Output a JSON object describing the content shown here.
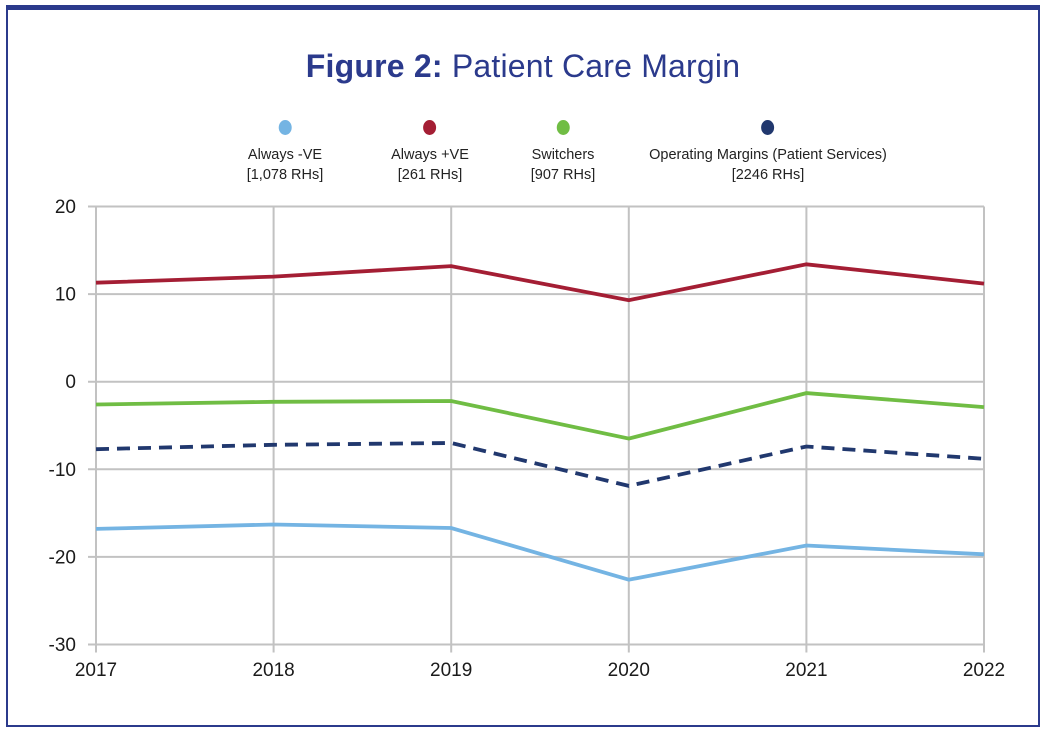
{
  "figure": {
    "title_bold": "Figure 2:",
    "title_rest": " Patient Care Margin",
    "title_color": "#2B3A8C",
    "border_color": "#2B3A8C"
  },
  "chart_data": {
    "type": "line",
    "title": "Figure 2: Patient Care Margin",
    "x": [
      "2017",
      "2018",
      "2019",
      "2020",
      "2021",
      "2022"
    ],
    "series": [
      {
        "name": "Always -VE",
        "count_label": "[1,078 RHs]",
        "color": "#74B4E3",
        "dash": false,
        "values": [
          -16.8,
          -16.3,
          -16.7,
          -22.6,
          -18.7,
          -19.7
        ]
      },
      {
        "name": "Always +VE",
        "count_label": "[261 RHs]",
        "color": "#A41E34",
        "dash": false,
        "values": [
          11.3,
          12.0,
          13.2,
          9.3,
          13.4,
          11.2
        ]
      },
      {
        "name": "Switchers",
        "count_label": "[907 RHs]",
        "color": "#70BD44",
        "dash": false,
        "values": [
          -2.6,
          -2.3,
          -2.2,
          -6.5,
          -1.3,
          -2.9
        ]
      },
      {
        "name": "Operating Margins (Patient Services)",
        "count_label": "[2246 RHs]",
        "color": "#21386E",
        "dash": true,
        "values": [
          -7.7,
          -7.2,
          -7.0,
          -11.9,
          -7.4,
          -8.8
        ]
      }
    ],
    "y_ticks": [
      20,
      10,
      0,
      -10,
      -20,
      -30
    ],
    "ylim": [
      -30,
      20
    ],
    "xlabel": "",
    "ylabel": "",
    "grid": true,
    "gridline_color": "#C2C2C2",
    "axis_text_color": "#1B1B1B",
    "legend_position": "top"
  }
}
